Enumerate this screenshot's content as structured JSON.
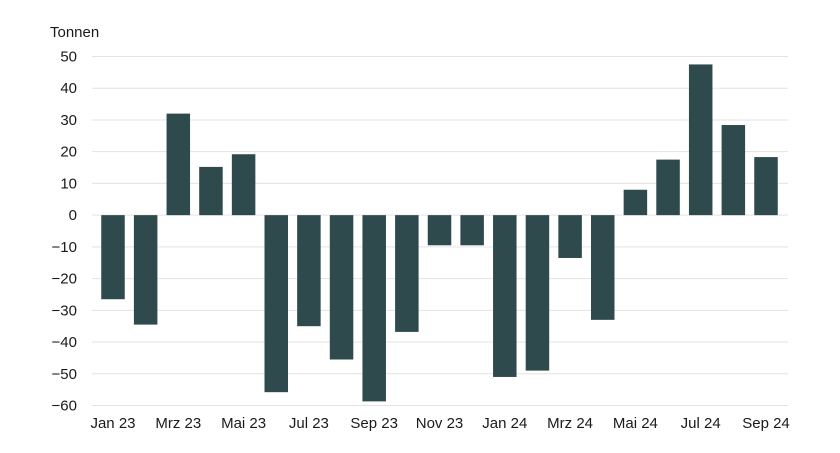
{
  "chart_data": {
    "type": "bar",
    "ylabel": "Tonnen",
    "ylim": [
      -60,
      50
    ],
    "yticks": [
      50,
      40,
      30,
      20,
      10,
      0,
      -10,
      -20,
      -30,
      -40,
      -50,
      -60
    ],
    "grid": true,
    "bar_color": "#2e4a4c",
    "grid_color": "#e3e3e3",
    "categories": [
      "Jan 23",
      "Feb 23",
      "Mrz 23",
      "Apr 23",
      "Mai 23",
      "Jun 23",
      "Jul 23",
      "Aug 23",
      "Sep 23",
      "Okt 23",
      "Nov 23",
      "Dez 23",
      "Jan 24",
      "Feb 24",
      "Mrz 24",
      "Apr 24",
      "Mai 24",
      "Jun 24",
      "Jul 24",
      "Aug 24",
      "Sep 24"
    ],
    "tick_labels": [
      "Jan 23",
      "",
      "Mrz 23",
      "",
      "Mai 23",
      "",
      "Jul 23",
      "",
      "Sep 23",
      "",
      "Nov 23",
      "",
      "Jan 24",
      "",
      "Mrz 24",
      "",
      "Mai 24",
      "",
      "Jul 24",
      "",
      "Sep 24"
    ],
    "values": [
      -26.5,
      -34.5,
      32,
      15.2,
      19.2,
      -55.8,
      -35,
      -45.5,
      -58.7,
      -36.8,
      -9.5,
      -9.5,
      -51,
      -49,
      -13.5,
      -33,
      8,
      17.5,
      47.5,
      28.4,
      18.3
    ]
  }
}
